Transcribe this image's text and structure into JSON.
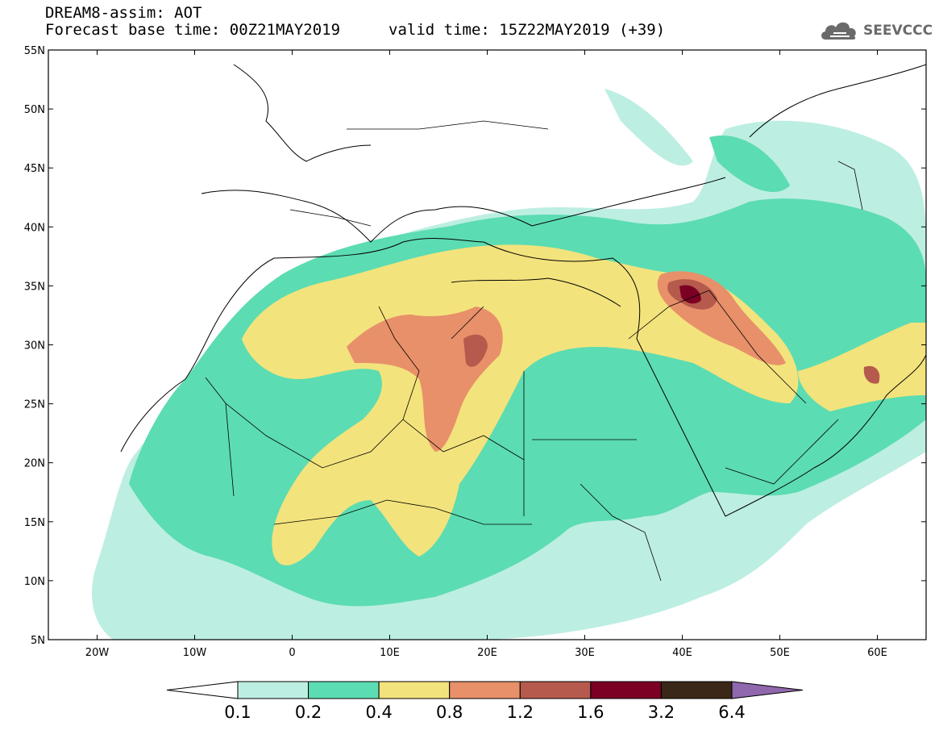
{
  "title": {
    "line1": "DREAM8-assim: AOT",
    "line2": "Forecast base time: 00Z21MAY2019",
    "valid": "valid time: 15Z22MAY2019 (+39)"
  },
  "logo": {
    "text": "SEEVCCC",
    "icon": "cloud-icon"
  },
  "map": {
    "lon_range": [
      -25,
      65
    ],
    "lat_range": [
      5,
      55
    ],
    "y_ticks": [
      "5N",
      "10N",
      "15N",
      "20N",
      "25N",
      "30N",
      "35N",
      "40N",
      "45N",
      "50N",
      "55N"
    ],
    "x_ticks": [
      "20W",
      "10W",
      "0",
      "10E",
      "20E",
      "30E",
      "40E",
      "50E",
      "60E"
    ]
  },
  "colorbar": {
    "labels": [
      "0.1",
      "0.2",
      "0.4",
      "0.8",
      "1.2",
      "1.6",
      "3.2",
      "6.4"
    ],
    "colors": [
      "#bdeee2",
      "#5cdcb2",
      "#f3e37c",
      "#e8906a",
      "#b55a4c",
      "#7c0024",
      "#3a2717"
    ],
    "over_color": "#8f68ad",
    "under_color": "#ffffff"
  }
}
